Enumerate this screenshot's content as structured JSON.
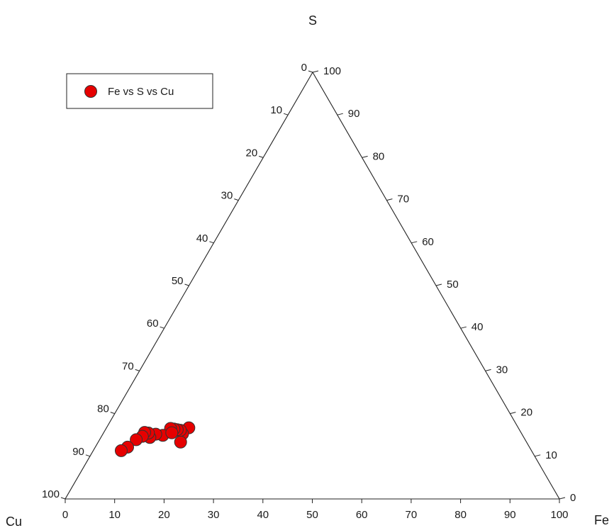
{
  "chart_data": {
    "type": "scatter",
    "subtype": "ternary",
    "vertices": {
      "top": "S",
      "bottom_left": "Cu",
      "bottom_right": "Fe"
    },
    "axes": {
      "S": {
        "range": [
          0,
          100
        ],
        "ticks": [
          "0",
          "10",
          "20",
          "30",
          "40",
          "50",
          "60",
          "70",
          "80",
          "90",
          "100"
        ]
      },
      "Cu": {
        "range": [
          0,
          100
        ],
        "ticks": [
          "0",
          "10",
          "20",
          "30",
          "40",
          "50",
          "60",
          "70",
          "80",
          "90",
          "100"
        ]
      },
      "Fe": {
        "range": [
          0,
          100
        ],
        "ticks": [
          "0",
          "10",
          "20",
          "30",
          "40",
          "50",
          "60",
          "70",
          "80",
          "90",
          "100"
        ]
      }
    },
    "grid": false,
    "legend": {
      "position": "top-left",
      "entries": [
        "Fe vs S vs Cu"
      ]
    },
    "series": [
      {
        "name": "Fe vs S vs Cu",
        "color": "#e60000",
        "points": [
          {
            "fe": 20,
            "s": 20,
            "cu": 80
          },
          {
            "fe": 19,
            "s": 18,
            "cu": 81
          },
          {
            "fe": 20,
            "s": 16,
            "cu": 84
          },
          {
            "fe": 18,
            "s": 19,
            "cu": 81
          },
          {
            "fe": 17,
            "s": 19,
            "cu": 81
          },
          {
            "fe": 16,
            "s": 19,
            "cu": 81
          },
          {
            "fe": 15,
            "s": 19,
            "cu": 81
          },
          {
            "fe": 14,
            "s": 17,
            "cu": 83
          },
          {
            "fe": 16,
            "s": 18,
            "cu": 82
          },
          {
            "fe": 12,
            "s": 17,
            "cu": 83
          },
          {
            "fe": 11,
            "s": 16,
            "cu": 84
          },
          {
            "fe": 10,
            "s": 17,
            "cu": 83
          },
          {
            "fe": 9,
            "s": 17,
            "cu": 83
          },
          {
            "fe": 9,
            "s": 16,
            "cu": 84
          },
          {
            "fe": 8,
            "s": 15,
            "cu": 85
          },
          {
            "fe": 7,
            "s": 13,
            "cu": 87
          },
          {
            "fe": 6,
            "s": 12,
            "cu": 88
          }
        ]
      }
    ]
  }
}
